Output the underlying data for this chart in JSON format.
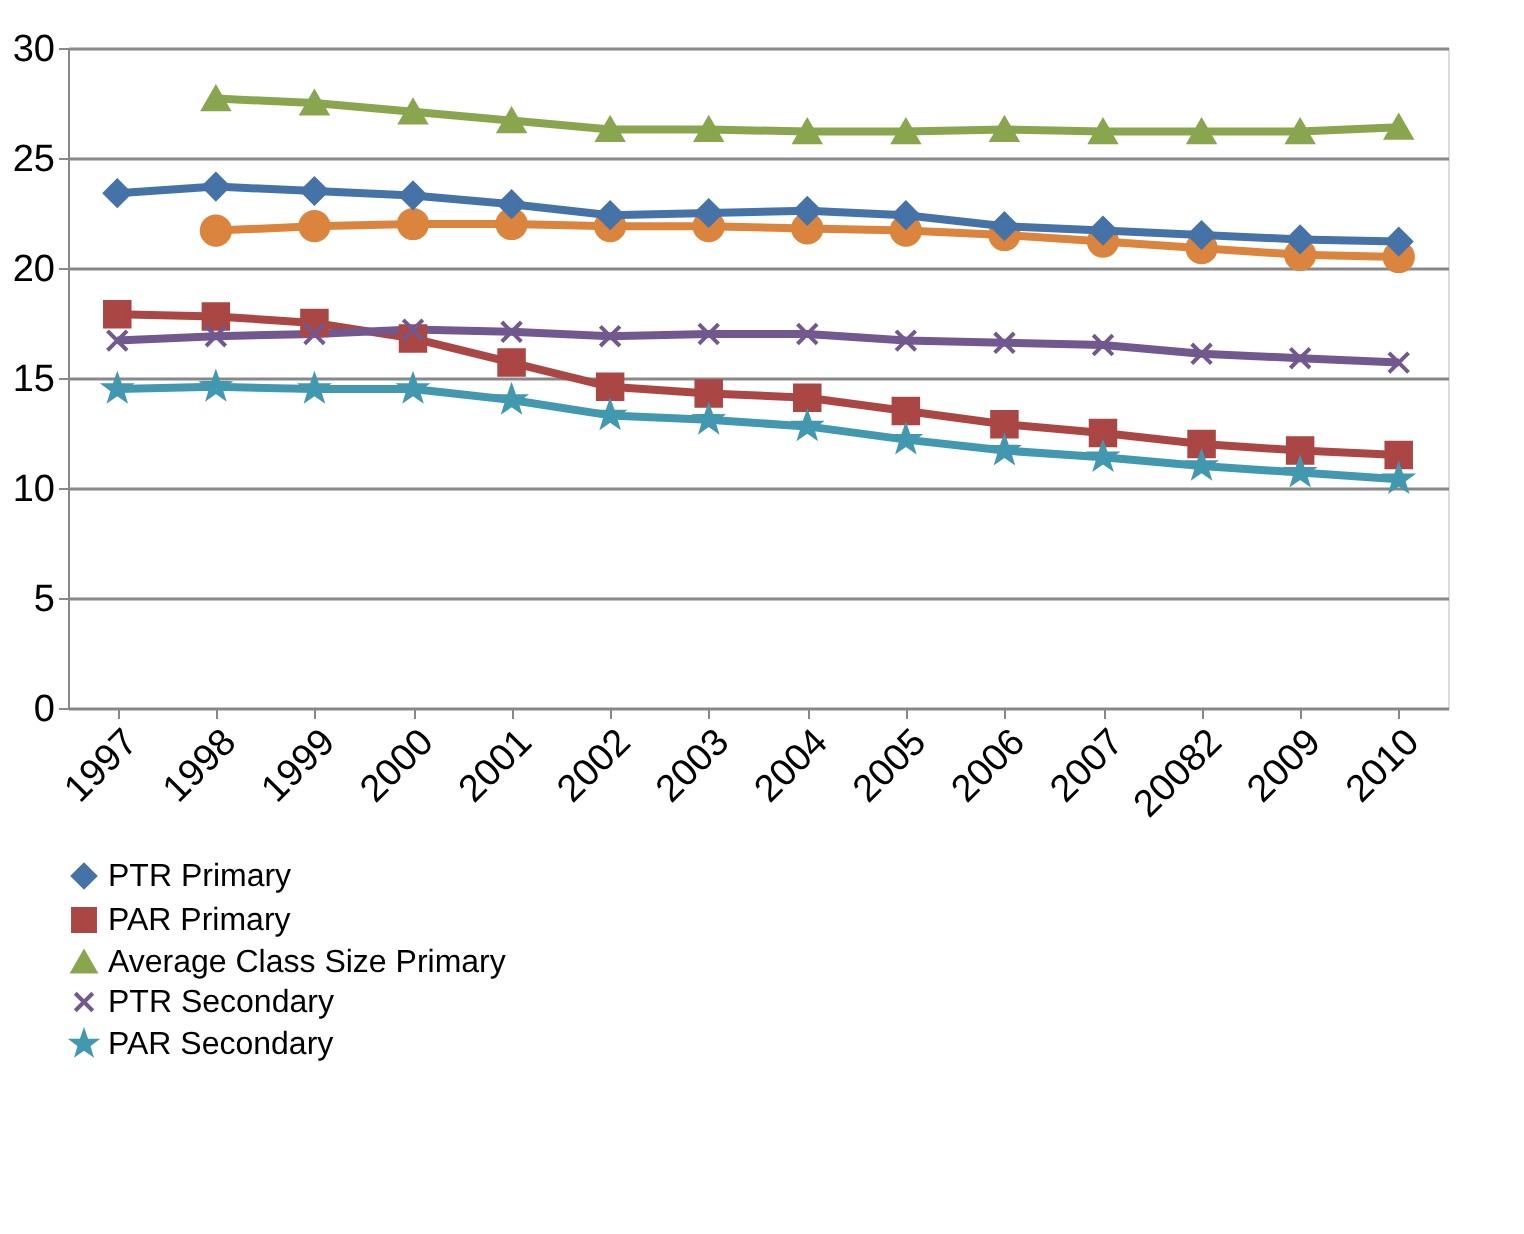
{
  "chart_data": {
    "type": "line",
    "categories": [
      "1997",
      "1998",
      "1999",
      "2000",
      "2001",
      "2002",
      "2003",
      "2004",
      "2005",
      "2006",
      "2007",
      "20082",
      "2009",
      "2010"
    ],
    "series": [
      {
        "name": "PTR Primary",
        "color": "#4572a7",
        "marker": "diamond",
        "values": [
          23.4,
          23.7,
          23.5,
          23.3,
          22.9,
          22.4,
          22.5,
          22.6,
          22.4,
          21.9,
          21.7,
          21.5,
          21.3,
          21.2
        ]
      },
      {
        "name": "PAR Primary",
        "color": "#aa4643",
        "marker": "square",
        "values": [
          17.9,
          17.8,
          17.5,
          16.8,
          15.7,
          14.6,
          14.3,
          14.1,
          13.5,
          12.9,
          12.5,
          12.0,
          11.7,
          11.5
        ]
      },
      {
        "name": "Average Class Size Primary",
        "color": "#89a54e",
        "marker": "triangle",
        "values": [
          null,
          27.7,
          27.5,
          27.1,
          26.7,
          26.3,
          26.3,
          26.2,
          26.2,
          26.3,
          26.2,
          26.2,
          26.2,
          26.4
        ]
      },
      {
        "name": "PTR Secondary",
        "color": "#71588f",
        "marker": "cross",
        "values": [
          16.7,
          16.9,
          17.0,
          17.2,
          17.1,
          16.9,
          17.0,
          17.0,
          16.7,
          16.6,
          16.5,
          16.1,
          15.9,
          15.7
        ]
      },
      {
        "name": "PAR Secondary",
        "color": "#4198af",
        "marker": "star",
        "values": [
          14.5,
          14.6,
          14.5,
          14.5,
          14.0,
          13.3,
          13.1,
          12.8,
          12.2,
          11.7,
          11.4,
          11.0,
          10.7,
          10.4
        ]
      },
      {
        "color": "#db843d",
        "marker": "circle",
        "values": [
          null,
          21.7,
          21.9,
          22.0,
          22.0,
          21.9,
          21.9,
          21.8,
          21.7,
          21.5,
          21.2,
          20.9,
          20.6,
          20.5
        ]
      }
    ],
    "ylim": [
      0,
      30
    ],
    "yticks": [
      0,
      5,
      10,
      15,
      20,
      25,
      30
    ],
    "grid": "y",
    "legend": "bottom",
    "line_style": "solid"
  }
}
